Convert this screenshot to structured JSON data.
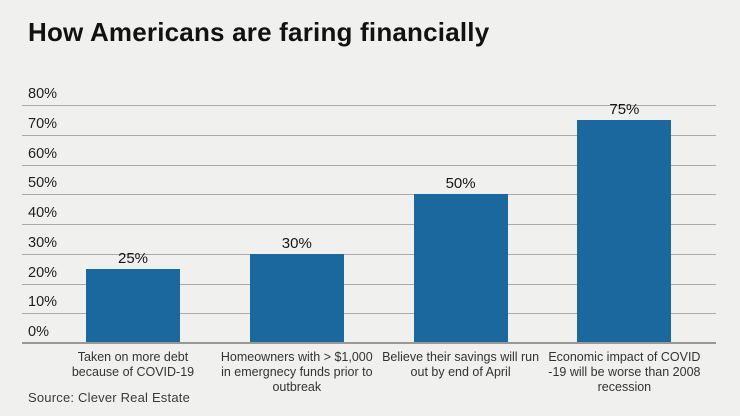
{
  "header": {
    "title": "How Americans are faring financially"
  },
  "footer": {
    "source": "Source: Clever Real Estate"
  },
  "colors": {
    "background": "#f0f0ee",
    "bar": "#1b689e",
    "gridline": "#aaaaa8",
    "baseline": "#989895",
    "title_text": "#121212",
    "axis_text": "#202020"
  },
  "chart_data": {
    "type": "bar",
    "title": "How Americans are faring financially",
    "categories": [
      "Taken on more debt\nbecause of COVID-19",
      "Homeowners with > $1,000\nin emergnecy funds prior to\noutbreak",
      "Believe their savings will run\nout by end of April",
      "Economic impact of COVID\n-19 will be worse than 2008\nrecession"
    ],
    "values": [
      25,
      30,
      50,
      75
    ],
    "value_labels": [
      "25%",
      "30%",
      "50%",
      "75%"
    ],
    "xlabel": "",
    "ylabel": "",
    "ylim": [
      0,
      80
    ],
    "yticks": [
      0,
      10,
      20,
      30,
      40,
      50,
      60,
      70,
      80
    ],
    "ytick_labels": [
      "0%",
      "10%",
      "20%",
      "30%",
      "40%",
      "50%",
      "60%",
      "70%",
      "80%"
    ],
    "grid": true,
    "legend": false,
    "source": "Source: Clever Real Estate"
  }
}
